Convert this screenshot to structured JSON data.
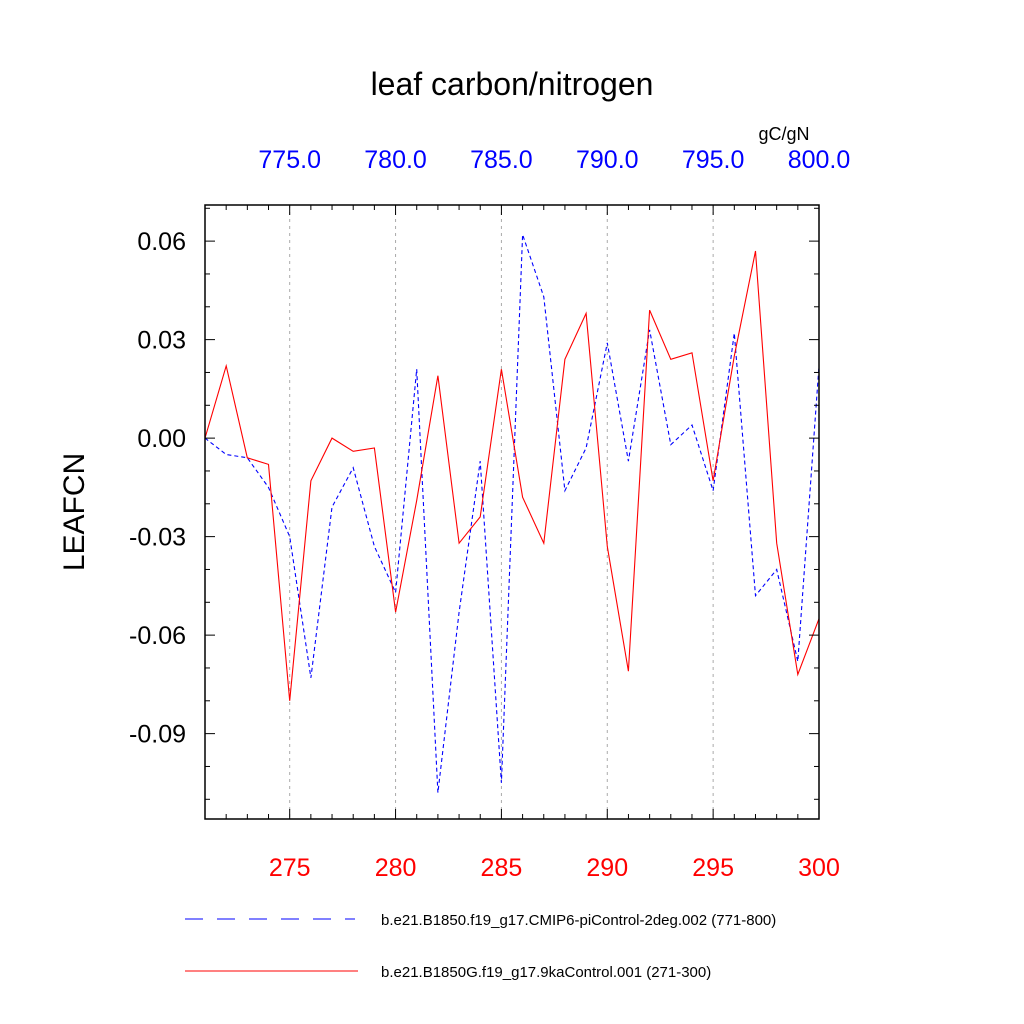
{
  "chart_data": {
    "type": "line",
    "title": "leaf carbon/nitrogen",
    "ylabel": "LEAFCN",
    "units_label": "gC/gN",
    "ylim": [
      -0.116,
      0.071
    ],
    "y_ticks": [
      "0.06",
      "0.03",
      "0.00",
      "-0.03",
      "-0.06",
      "-0.09"
    ],
    "y_tick_values": [
      0.06,
      0.03,
      0.0,
      -0.03,
      -0.06,
      -0.09
    ],
    "bottom_axis": {
      "xlim": [
        271,
        300
      ],
      "ticks": [
        "275",
        "280",
        "285",
        "290",
        "295",
        "300"
      ],
      "tick_values": [
        275,
        280,
        285,
        290,
        295,
        300
      ],
      "color": "#ff0000"
    },
    "top_axis": {
      "xlim": [
        771,
        800
      ],
      "ticks": [
        "775.0",
        "780.0",
        "785.0",
        "790.0",
        "795.0",
        "800.0"
      ],
      "tick_values": [
        775,
        780,
        785,
        790,
        795,
        800
      ],
      "color": "#0000ff"
    },
    "grid": "vertical-dashed",
    "series": [
      {
        "name": "b.e21.B1850.f19_g17.CMIP6-piControl-2deg.002 (771-800)",
        "color": "#0000ff",
        "style": "dashed",
        "x": [
          771,
          772,
          773,
          774,
          775,
          776,
          777,
          778,
          779,
          780,
          781,
          782,
          783,
          784,
          785,
          786,
          787,
          788,
          789,
          790,
          791,
          792,
          793,
          794,
          795,
          796,
          797,
          798,
          799,
          800
        ],
        "values": [
          0.0,
          -0.005,
          -0.006,
          -0.015,
          -0.03,
          -0.073,
          -0.021,
          -0.009,
          -0.033,
          -0.047,
          0.021,
          -0.108,
          -0.053,
          -0.007,
          -0.105,
          0.062,
          0.043,
          -0.016,
          -0.003,
          0.029,
          -0.007,
          0.033,
          -0.002,
          0.004,
          -0.016,
          0.032,
          -0.048,
          -0.04,
          -0.068,
          0.022
        ]
      },
      {
        "name": "b.e21.B1850G.f19_g17.9kaControl.001 (271-300)",
        "color": "#ff0000",
        "style": "solid",
        "x": [
          271,
          272,
          273,
          274,
          275,
          276,
          277,
          278,
          279,
          280,
          281,
          282,
          283,
          284,
          285,
          286,
          287,
          288,
          289,
          290,
          291,
          292,
          293,
          294,
          295,
          296,
          297,
          298,
          299,
          300
        ],
        "values": [
          0.0,
          0.022,
          -0.006,
          -0.008,
          -0.08,
          -0.013,
          0.0,
          -0.004,
          -0.003,
          -0.053,
          -0.019,
          0.019,
          -0.032,
          -0.024,
          0.021,
          -0.018,
          -0.032,
          0.024,
          0.038,
          -0.033,
          -0.071,
          0.039,
          0.024,
          0.026,
          -0.013,
          0.025,
          0.057,
          -0.032,
          -0.072,
          -0.055
        ]
      }
    ]
  }
}
